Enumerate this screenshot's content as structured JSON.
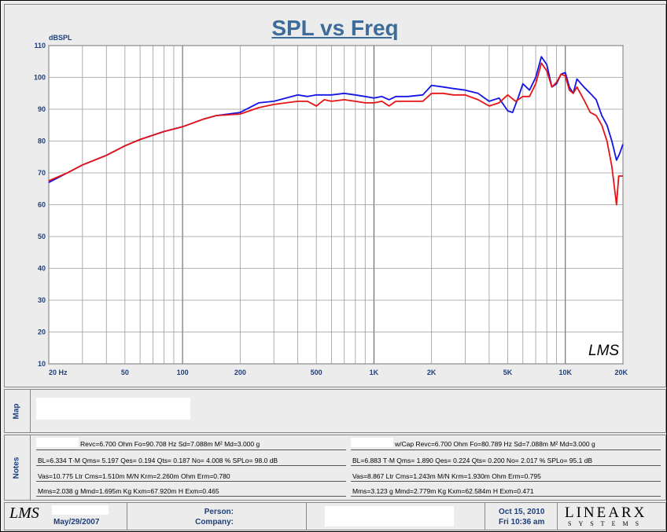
{
  "chart_data": {
    "type": "line",
    "title": "SPL vs Freq",
    "ylabel": "dBSPL",
    "xlabel": "",
    "xscale": "log",
    "xlim": [
      20,
      20000
    ],
    "ylim": [
      10,
      110
    ],
    "x_ticks": [
      {
        "v": 20,
        "label": "20 Hz"
      },
      {
        "v": 50,
        "label": "50"
      },
      {
        "v": 100,
        "label": "100"
      },
      {
        "v": 200,
        "label": "200"
      },
      {
        "v": 500,
        "label": "500"
      },
      {
        "v": 1000,
        "label": "1K"
      },
      {
        "v": 2000,
        "label": "2K"
      },
      {
        "v": 5000,
        "label": "5K"
      },
      {
        "v": 10000,
        "label": "10K"
      },
      {
        "v": 20000,
        "label": "20K"
      }
    ],
    "y_ticks": [
      10,
      20,
      30,
      40,
      50,
      60,
      70,
      80,
      90,
      100,
      110
    ],
    "grid": true,
    "series": [
      {
        "color": "#1414e6",
        "points": [
          [
            20,
            67
          ],
          [
            25,
            70
          ],
          [
            30,
            72.5
          ],
          [
            40,
            75.5
          ],
          [
            50,
            78.5
          ],
          [
            60,
            80.5
          ],
          [
            80,
            83
          ],
          [
            100,
            84.5
          ],
          [
            130,
            87
          ],
          [
            150,
            88
          ],
          [
            200,
            89
          ],
          [
            250,
            92
          ],
          [
            300,
            92.5
          ],
          [
            400,
            94.5
          ],
          [
            450,
            94
          ],
          [
            500,
            94.5
          ],
          [
            600,
            94.5
          ],
          [
            700,
            95
          ],
          [
            800,
            94.5
          ],
          [
            900,
            94
          ],
          [
            1000,
            93.5
          ],
          [
            1100,
            94
          ],
          [
            1200,
            93
          ],
          [
            1300,
            94
          ],
          [
            1500,
            94
          ],
          [
            1800,
            94.5
          ],
          [
            2000,
            97.5
          ],
          [
            2300,
            97
          ],
          [
            2600,
            96.5
          ],
          [
            3000,
            96
          ],
          [
            3500,
            95
          ],
          [
            4000,
            92.5
          ],
          [
            4500,
            93.5
          ],
          [
            5000,
            89.5
          ],
          [
            5300,
            89
          ],
          [
            5700,
            94
          ],
          [
            6000,
            98
          ],
          [
            6500,
            96
          ],
          [
            7000,
            100
          ],
          [
            7500,
            106.5
          ],
          [
            8000,
            104
          ],
          [
            8500,
            97
          ],
          [
            9000,
            98
          ],
          [
            9500,
            101
          ],
          [
            10000,
            101.5
          ],
          [
            10500,
            97
          ],
          [
            11000,
            95
          ],
          [
            11500,
            99.5
          ],
          [
            12500,
            97
          ],
          [
            13500,
            95
          ],
          [
            14500,
            93
          ],
          [
            15500,
            88
          ],
          [
            16500,
            85
          ],
          [
            17500,
            80
          ],
          [
            18500,
            74
          ],
          [
            19200,
            76
          ],
          [
            20000,
            79
          ]
        ]
      },
      {
        "color": "#e61414",
        "points": [
          [
            20,
            67.5
          ],
          [
            25,
            70
          ],
          [
            30,
            72.5
          ],
          [
            40,
            75.5
          ],
          [
            50,
            78.5
          ],
          [
            60,
            80.5
          ],
          [
            80,
            83
          ],
          [
            100,
            84.5
          ],
          [
            130,
            87
          ],
          [
            150,
            88
          ],
          [
            200,
            88.5
          ],
          [
            250,
            90.5
          ],
          [
            300,
            91.5
          ],
          [
            400,
            92.5
          ],
          [
            450,
            92.5
          ],
          [
            500,
            91
          ],
          [
            550,
            93
          ],
          [
            600,
            92.5
          ],
          [
            700,
            93
          ],
          [
            800,
            92.5
          ],
          [
            900,
            92
          ],
          [
            1000,
            92
          ],
          [
            1100,
            92.5
          ],
          [
            1200,
            91
          ],
          [
            1300,
            92.5
          ],
          [
            1500,
            92.5
          ],
          [
            1800,
            92.5
          ],
          [
            2000,
            95
          ],
          [
            2300,
            95
          ],
          [
            2600,
            94.5
          ],
          [
            3000,
            94.5
          ],
          [
            3500,
            93
          ],
          [
            4000,
            91
          ],
          [
            4500,
            92
          ],
          [
            5000,
            94.5
          ],
          [
            5500,
            92.5
          ],
          [
            6000,
            94
          ],
          [
            6500,
            94
          ],
          [
            7000,
            98
          ],
          [
            7500,
            104.5
          ],
          [
            8000,
            102
          ],
          [
            8500,
            97
          ],
          [
            9000,
            98.5
          ],
          [
            9500,
            101
          ],
          [
            10000,
            100.5
          ],
          [
            10500,
            96
          ],
          [
            11000,
            95
          ],
          [
            11500,
            97
          ],
          [
            12500,
            93
          ],
          [
            13500,
            89
          ],
          [
            14500,
            88
          ],
          [
            15500,
            85
          ],
          [
            16500,
            80
          ],
          [
            17500,
            72
          ],
          [
            18500,
            60
          ],
          [
            19000,
            69
          ],
          [
            20000,
            69
          ]
        ]
      }
    ]
  },
  "panels": {
    "map_label": "Map",
    "notes_label": "Notes"
  },
  "notes": {
    "left": [
      "Revc=6.700 Ohm  Fo=90.708 Hz  Sd=7.088m M² Md=3.000 g",
      "BL=6.334 T·M  Qms= 5.197  Qes= 0.194  Qts= 0.187  No= 4.008 %  SPLo= 98.0 dB",
      "Vas=10.775 Ltr  Cms=1.510m M/N  Krm=2.260m Ohm  Erm=0.780",
      "Mms=2.038 g  Mmd=1.695m Kg  Kxm=67.920m H  Exm=0.465"
    ],
    "right": [
      "w/Cap Revc=6.700 Ohm  Fo=80.789 Hz  Sd=7.088m M² Md=3.000 g",
      "BL=6.883 T·M  Qms= 1.890  Qes= 0.224  Qts= 0.200  No= 2.017 %  SPLo= 95.1 dB",
      "Vas=8.867 Ltr  Cms=1.243m M/N  Krm=1.930m Ohm  Erm=0.795",
      "Mms=3.123 g  Mmd=2.779m Kg  Kxm=62.584m H  Exm=0.471"
    ]
  },
  "footer": {
    "logo_text": "LMS",
    "date": "May/29/2007",
    "person_label": "Person:",
    "company_label": "Company:",
    "timestamp_date": "Oct 15, 2010",
    "timestamp_time": "Fri 10:36 am",
    "brand": "LINEARX",
    "brand_sub": "SYSTEMS"
  },
  "watermark": "LMS"
}
